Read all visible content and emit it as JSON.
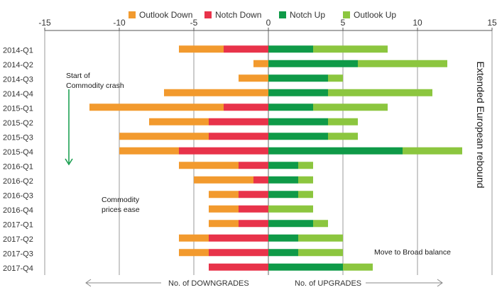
{
  "chart_data": {
    "type": "bar",
    "orientation": "horizontal-diverging-stacked",
    "categories": [
      "2014-Q1",
      "2014-Q2",
      "2014-Q3",
      "2014-Q4",
      "2015-Q1",
      "2015-Q2",
      "2015-Q3",
      "2015-Q4",
      "2016-Q1",
      "2016-Q2",
      "2016-Q3",
      "2016-Q4",
      "2017-Q1",
      "2017-Q2",
      "2017-Q3",
      "2017-Q4"
    ],
    "series": [
      {
        "name": "Outlook Down",
        "color": "#f29a2e",
        "values": [
          -3,
          -1,
          -2,
          -7,
          -9,
          -4,
          -6,
          -4,
          -4,
          -4,
          -2,
          -2,
          -2,
          -2,
          -2,
          0
        ]
      },
      {
        "name": "Notch Down",
        "color": "#e8334a",
        "values": [
          -3,
          0,
          0,
          0,
          -3,
          -4,
          -4,
          -6,
          -2,
          -1,
          -2,
          -2,
          -2,
          -4,
          -4,
          -4
        ]
      },
      {
        "name": "Notch Up",
        "color": "#0f9a48",
        "values": [
          3,
          6,
          4,
          4,
          3,
          4,
          4,
          9,
          2,
          2,
          2,
          0,
          3,
          2,
          2,
          5
        ]
      },
      {
        "name": "Outlook Up",
        "color": "#8cc63f",
        "values": [
          5,
          6,
          1,
          7,
          5,
          2,
          2,
          4,
          1,
          1,
          1,
          3,
          1,
          3,
          3,
          2
        ]
      }
    ],
    "xlim": [
      -15,
      15
    ],
    "xticks": [
      "-15",
      "-10",
      "-5",
      "0",
      "5",
      "10",
      "15"
    ],
    "legend_position": "top-center",
    "grid": "vertical",
    "annotations": {
      "crash": "Start of Commodity crash",
      "ease": "Commodity prices ease",
      "broad": "Move to Broad balance",
      "rebound": "Extended European rebound",
      "downgrades": "No. of DOWNGRADES",
      "upgrades": "No. of UPGRADES"
    }
  }
}
